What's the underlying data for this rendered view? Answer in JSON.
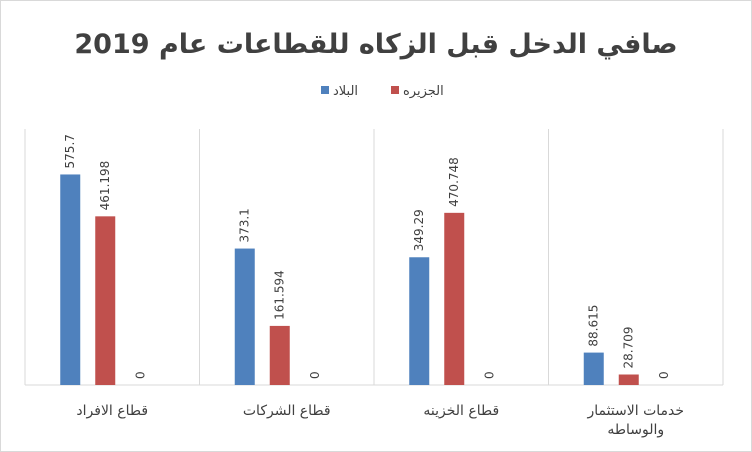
{
  "chart_data": {
    "type": "bar",
    "title": "صافي الدخل قبل الزكاه للقطاعات عام 2019",
    "categories": [
      "قطاع الافراد",
      "قطاع الشركات",
      "قطاع الخزينه",
      "خدمات الاستثمار والوساطه"
    ],
    "category_lines": [
      [
        "قطاع الافراد"
      ],
      [
        "قطاع الشركات"
      ],
      [
        "قطاع الخزينه"
      ],
      [
        "خدمات الاستثمار",
        "والوساطه"
      ]
    ],
    "series": [
      {
        "name": "البلاد",
        "color": "#4f81bd",
        "values": [
          575.7,
          373.1,
          349.29,
          88.615
        ],
        "labels": [
          "575.7",
          "373.1",
          "349.29",
          "88.615"
        ]
      },
      {
        "name": "الجزيره",
        "color": "#c0504d",
        "values": [
          461.198,
          161.594,
          470.748,
          28.709
        ],
        "labels": [
          "461.198",
          "161.594",
          "470.748",
          "28.709"
        ]
      },
      {
        "name": "",
        "color": "#9bbb59",
        "values": [
          0,
          0,
          0,
          0
        ],
        "labels": [
          "0",
          "0",
          "0",
          "0"
        ]
      }
    ],
    "ylim": [
      0,
      700
    ],
    "legend_position": "top-center",
    "gridlines": "vertical category separators",
    "xlabel": "",
    "ylabel": ""
  }
}
